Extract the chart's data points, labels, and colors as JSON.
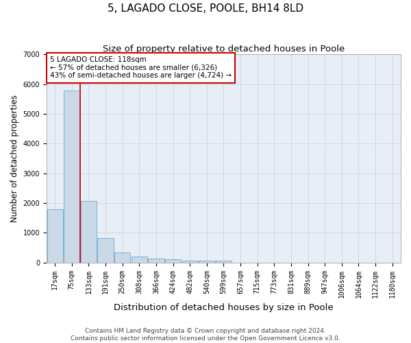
{
  "title": "5, LAGADO CLOSE, POOLE, BH14 8LD",
  "subtitle": "Size of property relative to detached houses in Poole",
  "xlabel": "Distribution of detached houses by size in Poole",
  "ylabel": "Number of detached properties",
  "footer_line1": "Contains HM Land Registry data © Crown copyright and database right 2024.",
  "footer_line2": "Contains public sector information licensed under the Open Government Licence v3.0.",
  "bar_labels": [
    "17sqm",
    "75sqm",
    "133sqm",
    "191sqm",
    "250sqm",
    "308sqm",
    "366sqm",
    "424sqm",
    "482sqm",
    "540sqm",
    "599sqm",
    "657sqm",
    "715sqm",
    "773sqm",
    "831sqm",
    "889sqm",
    "947sqm",
    "1006sqm",
    "1064sqm",
    "1122sqm",
    "1180sqm"
  ],
  "bar_values": [
    1800,
    5780,
    2060,
    820,
    340,
    210,
    140,
    100,
    75,
    55,
    55,
    0,
    0,
    0,
    0,
    0,
    0,
    0,
    0,
    0,
    0
  ],
  "bar_color": "#c9d9e8",
  "bar_edge_color": "#7bafd4",
  "annotation_text": "5 LAGADO CLOSE: 118sqm\n← 57% of detached houses are smaller (6,326)\n43% of semi-detached houses are larger (4,724) →",
  "annotation_box_color": "#ffffff",
  "annotation_box_edge": "#cc0000",
  "vline_color": "#cc0000",
  "vline_x": 1.5,
  "ylim": [
    0,
    7000
  ],
  "yticks": [
    0,
    1000,
    2000,
    3000,
    4000,
    5000,
    6000,
    7000
  ],
  "grid_color": "#d0d8e4",
  "background_color": "#e8eef5",
  "title_fontsize": 11,
  "subtitle_fontsize": 9.5,
  "axis_label_fontsize": 8.5,
  "tick_fontsize": 7,
  "annotation_fontsize": 7.5,
  "footer_fontsize": 6.5
}
